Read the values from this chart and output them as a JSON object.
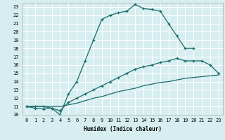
{
  "background_color": "#d6eef0",
  "grid_color": "#ffffff",
  "line_color": "#1a6b6b",
  "xlabel": "Humidex (Indice chaleur)",
  "ylim": [
    10,
    23.5
  ],
  "xlim": [
    -0.5,
    23.5
  ],
  "yticks": [
    10,
    11,
    12,
    13,
    14,
    15,
    16,
    17,
    18,
    19,
    20,
    21,
    22,
    23
  ],
  "xticks": [
    0,
    1,
    2,
    3,
    4,
    5,
    6,
    7,
    8,
    9,
    10,
    11,
    12,
    13,
    14,
    15,
    16,
    17,
    18,
    19,
    20,
    21,
    22,
    23
  ],
  "line1_x": [
    0,
    1,
    2,
    3,
    4,
    5,
    6,
    7,
    8,
    9,
    10,
    11,
    12,
    13,
    14,
    15,
    16,
    17,
    18,
    19,
    20
  ],
  "line1_y": [
    11,
    10.8,
    10.7,
    10.8,
    10.0,
    12.5,
    14.0,
    16.5,
    19.0,
    21.5,
    22.0,
    22.3,
    22.5,
    23.3,
    22.8,
    22.7,
    22.5,
    21.0,
    19.5,
    18.0,
    18.0
  ],
  "line2_x": [
    0,
    1,
    2,
    3,
    4,
    5,
    6,
    7,
    8,
    9,
    10,
    11,
    12,
    13,
    14,
    15,
    16,
    17,
    18,
    19,
    20,
    21,
    22,
    23
  ],
  "line2_y": [
    11,
    11,
    11,
    10.8,
    10.5,
    11.5,
    12.0,
    12.5,
    13.0,
    13.5,
    14.0,
    14.5,
    15.0,
    15.5,
    15.8,
    16.0,
    16.3,
    16.5,
    16.8,
    16.5,
    16.5,
    16.5,
    16.0,
    15.0
  ],
  "line3_x": [
    0,
    1,
    2,
    3,
    4,
    5,
    6,
    7,
    8,
    9,
    10,
    11,
    12,
    13,
    14,
    15,
    16,
    17,
    18,
    19,
    20,
    21,
    22,
    23
  ],
  "line3_y": [
    11,
    11,
    11,
    11,
    11,
    11.2,
    11.4,
    11.7,
    12.0,
    12.2,
    12.5,
    12.8,
    13.0,
    13.2,
    13.5,
    13.7,
    13.9,
    14.0,
    14.2,
    14.4,
    14.5,
    14.6,
    14.7,
    14.8
  ]
}
